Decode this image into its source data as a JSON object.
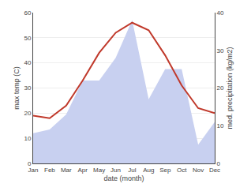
{
  "chart_data": {
    "type": "line",
    "categories": [
      "Jan",
      "Feb",
      "Mar",
      "Apr",
      "May",
      "Jun",
      "Jul",
      "Aug",
      "Sep",
      "Oct",
      "Nov",
      "Dec"
    ],
    "xlabel": "date (month)",
    "ylabel": "max temp (C)",
    "y2label": "med. precipitation (kg/m2)",
    "ylim": [
      0,
      60
    ],
    "yticks": [
      0,
      10,
      20,
      30,
      40,
      50,
      60
    ],
    "y2lim": [
      0,
      40
    ],
    "y2ticks": [
      0,
      10,
      20,
      30,
      40
    ],
    "grid": true,
    "series": [
      {
        "type": "area",
        "axis": "y2",
        "color": "#c8d0f0",
        "values": [
          8,
          9,
          13,
          22,
          22,
          28,
          38,
          17,
          25,
          25,
          5,
          11
        ]
      },
      {
        "type": "line",
        "color": "#c0392b",
        "values": [
          19,
          18,
          23,
          33,
          44,
          52,
          56,
          53,
          43,
          31,
          22,
          20
        ]
      }
    ]
  }
}
